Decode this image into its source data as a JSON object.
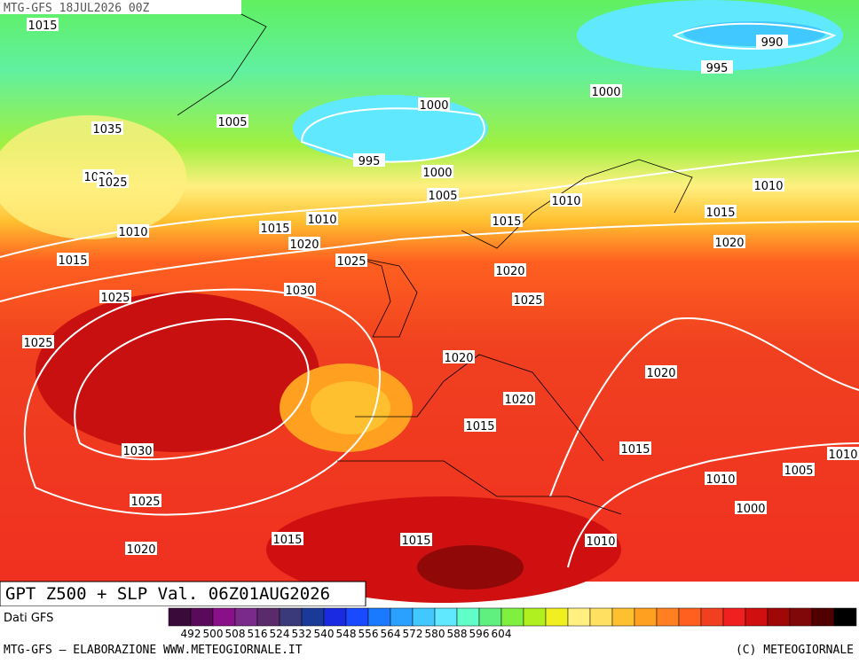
{
  "header": {
    "title": "MTG-GFS 18JUL2026 00Z"
  },
  "isobar_labels": [
    1015,
    990,
    995,
    1000,
    1000,
    1005,
    1035,
    995,
    1000,
    1030,
    1025,
    1005,
    1010,
    1010,
    1015,
    1010,
    1015,
    1015,
    1010,
    1020,
    1020,
    1015,
    1025,
    1020,
    1030,
    1025,
    1025,
    1025,
    1020,
    1020,
    1020,
    1015,
    1030,
    1015,
    1010,
    1005,
    1010,
    1025,
    1000,
    1015,
    1015,
    1010,
    1020
  ],
  "map_title": "GPT Z500 + SLP Val. 06Z01AUG2026",
  "source": "Dati GFS",
  "colorbar": {
    "colors": [
      "#3a0a3a",
      "#5a0a5a",
      "#8a108a",
      "#7a2a8a",
      "#5a2a6a",
      "#3a3a7a",
      "#1a3a9a",
      "#1a2ae0",
      "#1a4aff",
      "#1a7aff",
      "#2aa0ff",
      "#40c8ff",
      "#60e8ff",
      "#60ffc8",
      "#60f080",
      "#80f040",
      "#b0f020",
      "#f0f020",
      "#fff080",
      "#ffe060",
      "#ffc030",
      "#ffa020",
      "#ff8020",
      "#ff6020",
      "#f04020",
      "#f02020",
      "#d01010",
      "#a00808",
      "#800808",
      "#500000",
      "#000000"
    ],
    "labels": [
      492,
      500,
      508,
      516,
      524,
      532,
      540,
      548,
      556,
      564,
      572,
      580,
      588,
      596,
      604
    ]
  },
  "footer": {
    "left": "MTG-GFS — ELABORAZIONE WWW.METEOGIORNALE.IT",
    "right": "(C) METEOGIORNALE"
  }
}
